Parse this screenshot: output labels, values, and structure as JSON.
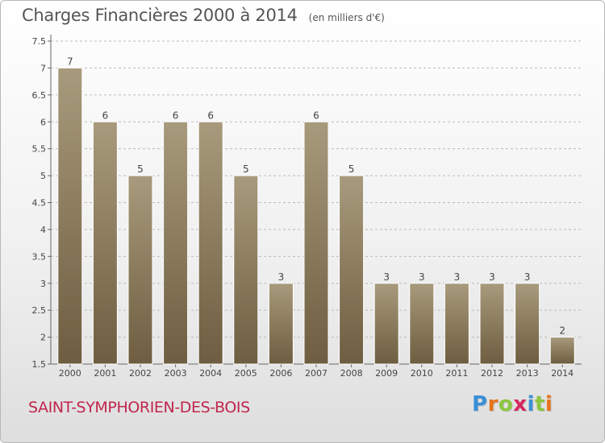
{
  "header": {
    "title": "Charges Financières 2000 à 2014",
    "subtitle": "(en milliers d'€)"
  },
  "footer": {
    "place": "SAINT-SYMPHORIEN-DES-BOIS",
    "logo_text": "Proxiti"
  },
  "colors": {
    "bar_top": "#a89a7c",
    "bar_bottom": "#6e5d40",
    "title": "#555555",
    "place": "#c0264d",
    "grid": "#bbbbbb",
    "logo": [
      "#3a8fd6",
      "#e8731a",
      "#8cc63f",
      "#d4285e",
      "#3a8fd6",
      "#8cc63f",
      "#e8731a"
    ]
  },
  "chart_data": {
    "type": "bar",
    "title": "Charges Financières 2000 à 2014",
    "subtitle": "(en milliers d'€)",
    "categories": [
      "2000",
      "2001",
      "2002",
      "2003",
      "2004",
      "2005",
      "2006",
      "2007",
      "2008",
      "2009",
      "2010",
      "2011",
      "2012",
      "2013",
      "2014"
    ],
    "values": [
      7,
      6,
      5,
      6,
      6,
      5,
      3,
      6,
      5,
      3,
      3,
      3,
      3,
      3,
      2
    ],
    "data_labels": [
      "7",
      "6",
      "5",
      "6",
      "6",
      "5",
      "3",
      "6",
      "5",
      "3",
      "3",
      "3",
      "3",
      "3",
      "2"
    ],
    "ylim": [
      1.5,
      7.5
    ],
    "yticks": [
      1.5,
      2,
      2.5,
      3,
      3.5,
      4,
      4.5,
      5,
      5.5,
      6,
      6.5,
      7,
      7.5
    ],
    "ytick_labels": [
      "1.5",
      "2",
      "2.5",
      "3",
      "3.5",
      "4",
      "4.5",
      "5",
      "5.5",
      "6",
      "6.5",
      "7",
      "7.5"
    ],
    "grid": true,
    "xlabel": "",
    "ylabel": ""
  }
}
